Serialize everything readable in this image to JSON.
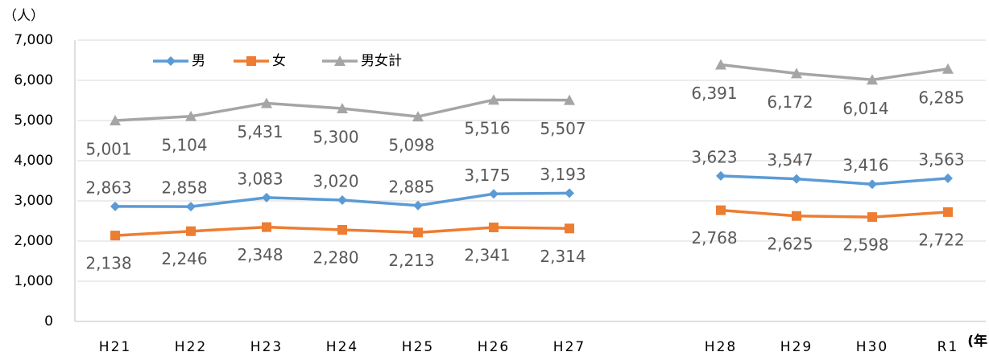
{
  "chart_data": {
    "type": "line",
    "y_label": "（人）",
    "x_label": "(年",
    "categories": [
      "H21",
      "H22",
      "H23",
      "H24",
      "H25",
      "H26",
      "H27",
      null,
      "H28",
      "H29",
      "H30",
      "R1"
    ],
    "series": [
      {
        "name": "男",
        "color": "#5b9bd5",
        "marker": "diamond",
        "values": [
          2863,
          2858,
          3083,
          3020,
          2885,
          3175,
          3193,
          null,
          3623,
          3547,
          3416,
          3563
        ],
        "value_labels": [
          "2,863",
          "2,858",
          "3,083",
          "3,020",
          "2,885",
          "3,175",
          "3,193",
          null,
          "3,623",
          "3,547",
          "3,416",
          "3,563"
        ]
      },
      {
        "name": "女",
        "color": "#ed7d31",
        "marker": "square",
        "values": [
          2138,
          2246,
          2348,
          2280,
          2213,
          2341,
          2314,
          null,
          2768,
          2625,
          2598,
          2722
        ],
        "value_labels": [
          "2,138",
          "2,246",
          "2,348",
          "2,280",
          "2,213",
          "2,341",
          "2,314",
          null,
          "2,768",
          "2,625",
          "2,598",
          "2,722"
        ]
      },
      {
        "name": "男女計",
        "color": "#a5a5a5",
        "marker": "triangle",
        "values": [
          5001,
          5104,
          5431,
          5300,
          5098,
          5516,
          5507,
          null,
          6391,
          6172,
          6014,
          6285
        ],
        "value_labels": [
          "5,001",
          "5,104",
          "5,431",
          "5,300",
          "5,098",
          "5,516",
          "5,507",
          null,
          "6,391",
          "6,172",
          "6,014",
          "6,285"
        ]
      }
    ],
    "ylim": [
      0,
      7000
    ],
    "yticks": [
      0,
      {
        "value": 1000,
        "label": "1,000"
      },
      {
        "value": 2000,
        "label": "2,000"
      },
      {
        "value": 3000,
        "label": "3,000"
      },
      {
        "value": 4000,
        "label": "4,000"
      },
      {
        "value": 5000,
        "label": "5,000"
      },
      {
        "value": 6000,
        "label": "6,000"
      },
      {
        "value": 7000,
        "label": "7,000"
      }
    ],
    "grid": true
  }
}
